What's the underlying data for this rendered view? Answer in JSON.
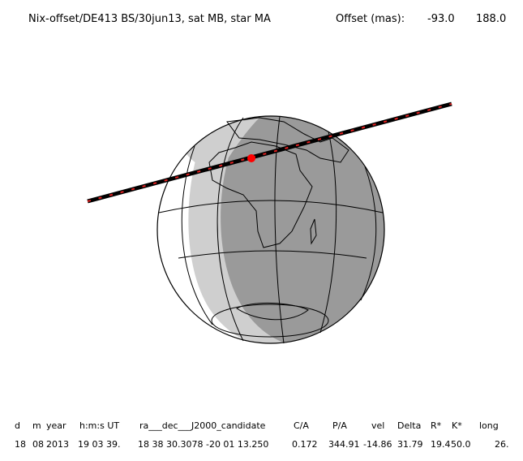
{
  "header": {
    "title": "Nix-offset/DE413 BS/30jun13, sat MB, star MA",
    "offset_label": "Offset (mas):",
    "offset_values": [
      "-93.0",
      "188.0"
    ]
  },
  "table": {
    "columns": [
      "d",
      "m",
      "year",
      "h:m:s UT",
      "ra___dec___J2000_candidate",
      "C/A",
      "P/A",
      "vel",
      "Delta",
      "R*",
      "K*",
      "long"
    ],
    "row": [
      "18",
      "08",
      "2013",
      "19 03 39.",
      "18 38 30.3078 -20 01 13.250",
      "0.172",
      "344.91",
      "-14.86",
      "31.79",
      "19.4",
      "50.0",
      "26."
    ]
  }
}
